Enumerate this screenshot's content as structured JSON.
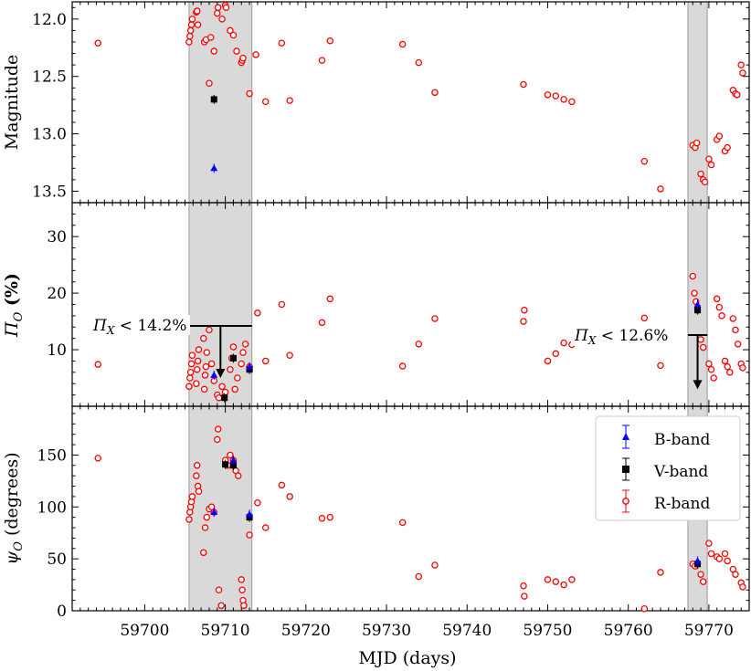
{
  "chart_data": {
    "type": "scatter",
    "xlabel": "MJD (days)",
    "xlim": [
      59691,
      59775
    ],
    "x_ticks": [
      59700,
      59710,
      59720,
      59730,
      59740,
      59750,
      59760,
      59770
    ],
    "x_tick_labels": [
      "59700",
      "59710",
      "59720",
      "59730",
      "59740",
      "59750",
      "59760",
      "59770"
    ],
    "shaded_regions": [
      [
        59705.5,
        59713.3
      ],
      [
        59767.4,
        59769.8
      ]
    ],
    "legend": {
      "position": "right, bottom panel",
      "entries": [
        {
          "label": "B-band",
          "color": "#0000ff",
          "marker": "triangle"
        },
        {
          "label": "V-band",
          "color": "#000000",
          "marker": "square"
        },
        {
          "label": "R-band",
          "color": "#ff0000",
          "marker": "open-circle"
        }
      ]
    },
    "panels": [
      {
        "id": "magnitude",
        "ylabel": "Magnitude",
        "ylim": [
          13.6,
          11.85
        ],
        "inverted": true,
        "y_ticks": [
          12.0,
          12.5,
          13.0,
          13.5
        ],
        "y_tick_labels": [
          "12.0",
          "12.5",
          "13.0",
          "13.5"
        ],
        "series": [
          {
            "name": "R-band",
            "x": [
              59694.2,
              59705.5,
              59705.6,
              59705.7,
              59705.8,
              59705.9,
              59706.4,
              59706.5,
              59706.6,
              59707.4,
              59707.6,
              59708.0,
              59708.2,
              59708.6,
              59709.0,
              59709.1,
              59709.6,
              59710.0,
              59710.1,
              59710.6,
              59711.0,
              59711.4,
              59712.0,
              59712.1,
              59712.2,
              59713.0,
              59713.8,
              59715.0,
              59717.0,
              59718.0,
              59722.0,
              59723.0,
              59732.0,
              59734.0,
              59736.0,
              59747.0,
              59750.0,
              59751.0,
              59752.0,
              59753.0,
              59762.0,
              59764.0,
              59768.0,
              59768.3,
              59768.5,
              59769.0,
              59769.3,
              59769.5,
              59770.0,
              59770.3,
              59771.0,
              59771.3,
              59772.0,
              59772.3,
              59773.0,
              59773.3,
              59773.5,
              59774.0,
              59774.2
            ],
            "y": [
              12.21,
              12.2,
              12.15,
              12.1,
              12.05,
              12.0,
              11.94,
              11.93,
              12.05,
              12.2,
              12.18,
              12.56,
              12.16,
              12.28,
              11.95,
              11.9,
              12.0,
              11.88,
              11.9,
              12.1,
              12.14,
              12.28,
              12.38,
              12.36,
              12.34,
              12.65,
              12.31,
              12.72,
              12.21,
              12.71,
              12.36,
              12.19,
              12.22,
              12.38,
              12.64,
              12.57,
              12.66,
              12.67,
              12.7,
              12.72,
              13.24,
              13.48,
              13.1,
              13.12,
              13.08,
              13.35,
              13.4,
              13.42,
              13.22,
              13.27,
              13.05,
              13.02,
              13.15,
              13.12,
              12.62,
              12.65,
              12.66,
              12.4,
              12.47
            ]
          },
          {
            "name": "V-band",
            "x": [
              59708.6
            ],
            "y": [
              12.7
            ]
          },
          {
            "name": "B-band",
            "x": [
              59708.6
            ],
            "y": [
              13.3
            ]
          }
        ]
      },
      {
        "id": "polarization",
        "ylabel": "Π",
        "ylabel_sub": "O",
        "ylabel_suffix": " (%)",
        "ylim": [
          0,
          36
        ],
        "y_ticks": [
          10,
          20,
          30
        ],
        "y_tick_labels": [
          "10",
          "20",
          "30"
        ],
        "annotations": [
          {
            "text_main": "Π",
            "text_sub": "X",
            "text_rest": " < 14.2%",
            "level": 14.2,
            "x_from": 59705.5,
            "x_to": 59713.3,
            "arrow_x": 59709.4,
            "arrow_to": 5.0
          },
          {
            "text_main": "Π",
            "text_sub": "X",
            "text_rest": " < 12.6%",
            "level": 12.6,
            "x_from": 59767.4,
            "x_to": 59769.8,
            "arrow_x": 59768.6,
            "arrow_to": 3.0
          }
        ],
        "series": [
          {
            "name": "R-band",
            "x": [
              59694.2,
              59705.5,
              59705.6,
              59705.7,
              59705.8,
              59705.9,
              59706.4,
              59706.5,
              59706.6,
              59706.7,
              59707.3,
              59707.4,
              59707.5,
              59707.6,
              59707.7,
              59708.0,
              59708.3,
              59708.6,
              59709.0,
              59709.2,
              59709.6,
              59710.0,
              59710.6,
              59710.8,
              59711.0,
              59711.2,
              59711.5,
              59712.0,
              59712.2,
              59712.5,
              59713.0,
              59714.0,
              59715.0,
              59717.0,
              59718.0,
              59722.0,
              59723.0,
              59732.0,
              59734.0,
              59736.0,
              59747.0,
              59747.1,
              59750.0,
              59751.0,
              59752.0,
              59753.0,
              59762.0,
              59764.0,
              59768.0,
              59768.2,
              59768.4,
              59768.6,
              59769.0,
              59769.3,
              59770.0,
              59770.3,
              59770.6,
              59771.0,
              59771.3,
              59771.6,
              59772.0,
              59772.3,
              59772.6,
              59773.0,
              59773.3,
              59773.6,
              59774.0,
              59774.2
            ],
            "y": [
              7.4,
              3.5,
              5.0,
              6.0,
              7.5,
              9.0,
              4.0,
              6.5,
              8.0,
              10.0,
              12.0,
              3.0,
              5.5,
              7.0,
              9.5,
              13.5,
              7.5,
              4.5,
              2.0,
              1.5,
              3.5,
              2.5,
              6.5,
              8.5,
              10.5,
              3.0,
              5.0,
              7.5,
              9.5,
              11.0,
              7.0,
              16.5,
              8.0,
              18.0,
              9.0,
              14.8,
              19.0,
              7.1,
              11.0,
              15.5,
              15.0,
              17.0,
              8.0,
              9.3,
              11.2,
              10.9,
              15.6,
              7.2,
              23.0,
              20.0,
              18.5,
              17.0,
              11.8,
              10.4,
              7.5,
              6.5,
              5.0,
              19.0,
              17.5,
              16.0,
              8.0,
              7.0,
              6.0,
              15.5,
              13.5,
              11.0,
              7.5,
              6.8
            ]
          },
          {
            "name": "V-band",
            "x": [
              59709.9,
              59711.0,
              59713.0,
              59768.6
            ],
            "y": [
              1.5,
              8.5,
              6.5,
              17.0
            ]
          },
          {
            "name": "B-band",
            "x": [
              59708.6,
              59713.0,
              59768.6
            ],
            "y": [
              5.5,
              7.0,
              18.0
            ]
          }
        ]
      },
      {
        "id": "angle",
        "ylabel": "ψ",
        "ylabel_sub": "O",
        "ylabel_suffix": " (degrees)",
        "ylim": [
          0,
          197
        ],
        "y_ticks": [
          0,
          50,
          100,
          150
        ],
        "y_tick_labels": [
          "0",
          "50",
          "100",
          "150"
        ],
        "series": [
          {
            "name": "R-band",
            "x": [
              59694.2,
              59705.5,
              59705.6,
              59705.7,
              59705.8,
              59705.9,
              59706.4,
              59706.5,
              59706.6,
              59706.7,
              59707.3,
              59707.5,
              59707.7,
              59708.0,
              59708.3,
              59708.6,
              59709.0,
              59709.1,
              59709.2,
              59709.5,
              59710.0,
              59710.3,
              59710.6,
              59711.0,
              59711.3,
              59711.6,
              59712.0,
              59712.1,
              59712.2,
              59712.3,
              59713.0,
              59714.0,
              59715.0,
              59717.0,
              59718.0,
              59722.0,
              59723.0,
              59732.0,
              59734.0,
              59736.0,
              59747.0,
              59747.1,
              59750.0,
              59751.0,
              59752.0,
              59753.0,
              59762.0,
              59764.0,
              59768.0,
              59768.3,
              59769.0,
              59769.3,
              59770.0,
              59770.3,
              59771.0,
              59771.3,
              59772.0,
              59772.3,
              59773.0,
              59773.3,
              59774.0,
              59774.2
            ],
            "y": [
              147,
              88,
              95,
              100,
              105,
              110,
              130,
              140,
              120,
              115,
              56,
              80,
              90,
              98,
              100,
              95,
              165,
              175,
              20,
              5,
              145,
              140,
              150,
              145,
              135,
              130,
              30,
              20,
              10,
              5,
              73,
              104,
              80,
              121,
              110,
              89,
              90,
              85,
              33,
              44,
              24,
              14,
              30,
              28,
              25,
              30,
              2,
              37,
              45,
              43,
              35,
              28,
              65,
              55,
              52,
              50,
              55,
              48,
              40,
              35,
              27,
              23
            ]
          },
          {
            "name": "V-band",
            "x": [
              59710.0,
              59711.0,
              59713.0,
              59768.6
            ],
            "y": [
              141,
              140,
              90,
              45
            ]
          },
          {
            "name": "B-band",
            "x": [
              59708.6,
              59711.0,
              59713.0,
              59768.6
            ],
            "y": [
              95,
              145,
              93,
              48
            ]
          }
        ]
      }
    ]
  }
}
